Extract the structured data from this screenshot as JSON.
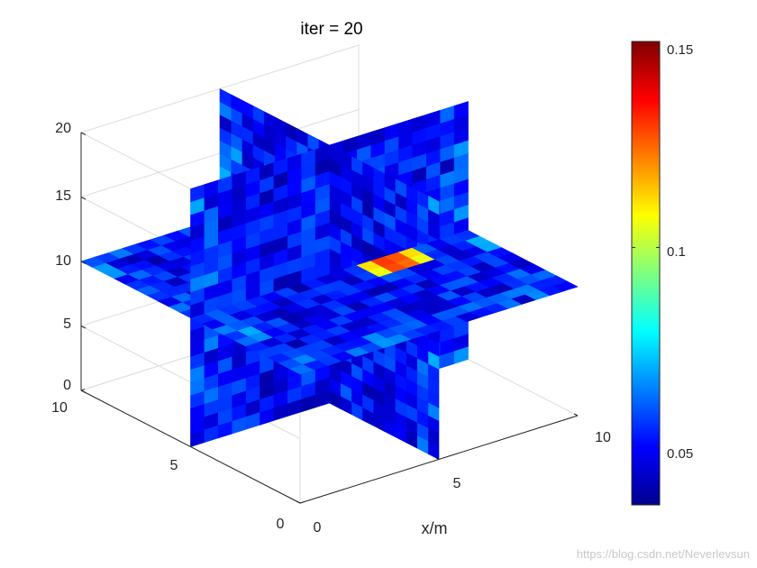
{
  "chart_data": {
    "type": "heatmap",
    "subtype": "3d-slice",
    "title": "iter = 20",
    "xlabel": "x/m",
    "ylabel": "",
    "zlabel": "",
    "x_ticks": [
      "0",
      "5",
      "10"
    ],
    "y_ticks": [
      "0",
      "5",
      "10"
    ],
    "z_ticks": [
      "0",
      "5",
      "10",
      "15",
      "20"
    ],
    "xlim": [
      0,
      10
    ],
    "ylim": [
      0,
      10
    ],
    "zlim": [
      0,
      20
    ],
    "slices": {
      "x": 5,
      "y": 5,
      "z": 10
    },
    "hotspot": {
      "x_range": [
        6,
        8
      ],
      "y_range": [
        4,
        6
      ],
      "z_range": [
        9,
        12
      ],
      "max_value": 0.15
    },
    "background_value_range": [
      0.04,
      0.06
    ],
    "colormap": "jet",
    "color_range": [
      0.035,
      0.152
    ],
    "colorbar_ticks": [
      "0.05",
      "0.1",
      "0.15"
    ],
    "colorbar_tick_values": [
      0.05,
      0.1,
      0.15
    ],
    "grid": true
  },
  "watermark": "https://blog.csdn.net/Neverlevsun"
}
